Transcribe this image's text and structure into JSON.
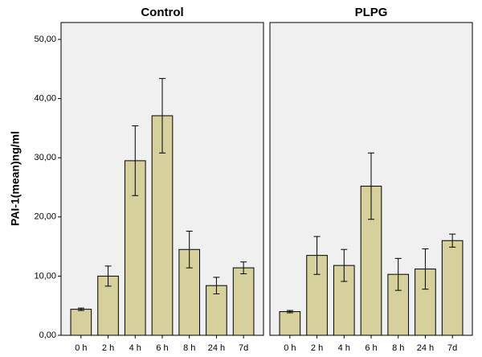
{
  "chart_data": {
    "type": "bar",
    "y_label": "PAI-1(mean)ng/ml",
    "color": "#d5d09c",
    "ylim": [
      0,
      50
    ],
    "yticks": [
      {
        "value": 0,
        "label": "0,00"
      },
      {
        "value": 10,
        "label": "10,00"
      },
      {
        "value": 20,
        "label": "20,00"
      },
      {
        "value": 30,
        "label": "30,00"
      },
      {
        "value": 40,
        "label": "40,00"
      },
      {
        "value": 50,
        "label": "50,00"
      }
    ],
    "categories": [
      "0 h",
      "2 h",
      "4 h",
      "6 h",
      "8 h",
      "24 h",
      "7d"
    ],
    "panels": [
      {
        "title": "Control",
        "values": [
          4.4,
          10.0,
          29.5,
          37.1,
          14.5,
          8.4,
          11.4
        ],
        "errors": [
          0.2,
          1.7,
          5.9,
          6.3,
          3.1,
          1.4,
          1.0
        ]
      },
      {
        "title": "PLPG",
        "values": [
          4.0,
          13.5,
          11.8,
          25.2,
          10.3,
          11.2,
          16.0
        ],
        "errors": [
          0.2,
          3.2,
          2.7,
          5.6,
          2.7,
          3.4,
          1.1
        ]
      }
    ]
  }
}
